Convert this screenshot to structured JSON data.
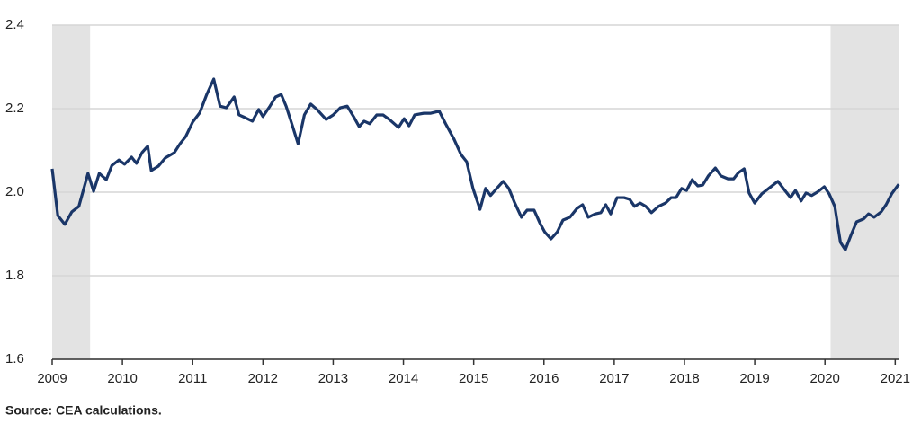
{
  "chart_data": {
    "type": "line",
    "source": "Source: CEA calculations.",
    "series": [
      {
        "color": "#1a3668",
        "x": [
          2009.0,
          2009.08,
          2009.18,
          2009.28,
          2009.38,
          2009.51,
          2009.59,
          2009.67,
          2009.77,
          2009.85,
          2009.95,
          2010.03,
          2010.13,
          2010.2,
          2010.28,
          2010.36,
          2010.41,
          2010.51,
          2010.61,
          2010.74,
          2010.82,
          2010.9,
          2011.0,
          2011.1,
          2011.2,
          2011.3,
          2011.39,
          2011.48,
          2011.59,
          2011.66,
          2011.74,
          2011.85,
          2011.94,
          2012.0,
          2012.1,
          2012.18,
          2012.26,
          2012.33,
          2012.42,
          2012.5,
          2012.59,
          2012.68,
          2012.77,
          2012.9,
          2013.0,
          2013.1,
          2013.2,
          2013.29,
          2013.37,
          2013.44,
          2013.52,
          2013.62,
          2013.71,
          2013.8,
          2013.93,
          2014.01,
          2014.08,
          2014.16,
          2014.29,
          2014.39,
          2014.51,
          2014.6,
          2014.72,
          2014.82,
          2014.9,
          2014.99,
          2015.09,
          2015.17,
          2015.24,
          2015.35,
          2015.42,
          2015.5,
          2015.58,
          2015.68,
          2015.76,
          2015.86,
          2015.94,
          2016.01,
          2016.1,
          2016.19,
          2016.27,
          2016.37,
          2016.47,
          2016.55,
          2016.63,
          2016.73,
          2016.81,
          2016.88,
          2016.95,
          2017.04,
          2017.14,
          2017.22,
          2017.29,
          2017.37,
          2017.45,
          2017.53,
          2017.63,
          2017.73,
          2017.81,
          2017.88,
          2017.96,
          2018.03,
          2018.11,
          2018.19,
          2018.26,
          2018.34,
          2018.44,
          2018.52,
          2018.62,
          2018.7,
          2018.77,
          2018.85,
          2018.92,
          2019.0,
          2019.1,
          2019.2,
          2019.33,
          2019.43,
          2019.51,
          2019.58,
          2019.66,
          2019.73,
          2019.81,
          2019.89,
          2019.99,
          2020.06,
          2020.14,
          2020.22,
          2020.29,
          2020.37,
          2020.45,
          2020.55,
          2020.62,
          2020.7,
          2020.8,
          2020.87,
          2020.95,
          2021.05
        ],
        "values": [
          2.056,
          1.944,
          1.923,
          1.953,
          1.966,
          2.045,
          2.002,
          2.045,
          2.03,
          2.064,
          2.077,
          2.067,
          2.084,
          2.069,
          2.095,
          2.11,
          2.052,
          2.062,
          2.082,
          2.095,
          2.116,
          2.133,
          2.168,
          2.19,
          2.234,
          2.271,
          2.206,
          2.202,
          2.228,
          2.185,
          2.179,
          2.17,
          2.198,
          2.181,
          2.206,
          2.228,
          2.234,
          2.206,
          2.159,
          2.116,
          2.185,
          2.211,
          2.198,
          2.174,
          2.185,
          2.202,
          2.206,
          2.181,
          2.157,
          2.17,
          2.164,
          2.185,
          2.185,
          2.174,
          2.155,
          2.176,
          2.159,
          2.185,
          2.189,
          2.189,
          2.194,
          2.164,
          2.127,
          2.09,
          2.073,
          2.009,
          1.959,
          2.009,
          1.992,
          2.013,
          2.026,
          2.009,
          1.976,
          1.94,
          1.957,
          1.957,
          1.927,
          1.905,
          1.888,
          1.905,
          1.933,
          1.94,
          1.961,
          1.97,
          1.94,
          1.948,
          1.951,
          1.97,
          1.948,
          1.987,
          1.987,
          1.983,
          1.966,
          1.974,
          1.966,
          1.951,
          1.966,
          1.974,
          1.987,
          1.987,
          2.009,
          2.004,
          2.03,
          2.015,
          2.017,
          2.039,
          2.058,
          2.039,
          2.032,
          2.032,
          2.047,
          2.056,
          1.998,
          1.974,
          1.996,
          2.009,
          2.026,
          2.004,
          1.987,
          2.004,
          1.979,
          1.998,
          1.992,
          2.0,
          2.013,
          1.996,
          1.966,
          1.88,
          1.862,
          1.897,
          1.929,
          1.936,
          1.948,
          1.94,
          1.953,
          1.97,
          1.996,
          2.019
        ]
      }
    ],
    "shaded_regions": [
      [
        2009.0,
        2009.54
      ],
      [
        2020.08,
        2021.06
      ]
    ],
    "shade_color": "#e3e3e3",
    "xlim": [
      2009,
      2021.06
    ],
    "xticks": [
      2009,
      2010,
      2011,
      2012,
      2013,
      2014,
      2015,
      2016,
      2017,
      2018,
      2019,
      2020,
      2021
    ],
    "ylim": [
      1.6,
      2.4
    ],
    "yticks": [
      1.6,
      1.8,
      {
        "value": 2,
        "label": "2.0"
      },
      2.2,
      2.4
    ],
    "grid": true
  }
}
